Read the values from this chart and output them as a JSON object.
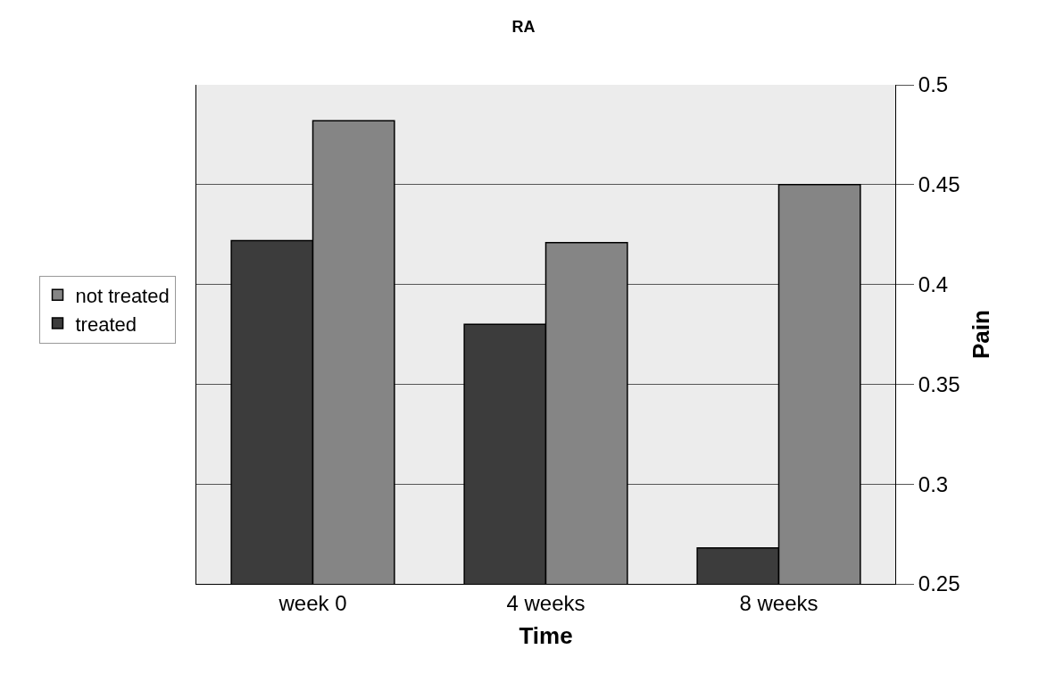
{
  "chart_data": {
    "type": "bar",
    "title": "RA",
    "xlabel": "Time",
    "ylabel": "Pain",
    "categories": [
      "week 0",
      "4 weeks",
      "8 weeks"
    ],
    "series": [
      {
        "name": "treated",
        "color": "#3c3c3c",
        "values": [
          0.422,
          0.38,
          0.268
        ]
      },
      {
        "name": "not treated",
        "color": "#858585",
        "values": [
          0.482,
          0.421,
          0.45
        ]
      }
    ],
    "ylim": [
      0.25,
      0.5
    ],
    "yticks": [
      0.25,
      0.3,
      0.35,
      0.4,
      0.45,
      0.5
    ],
    "grid": "y",
    "legend": "left"
  }
}
